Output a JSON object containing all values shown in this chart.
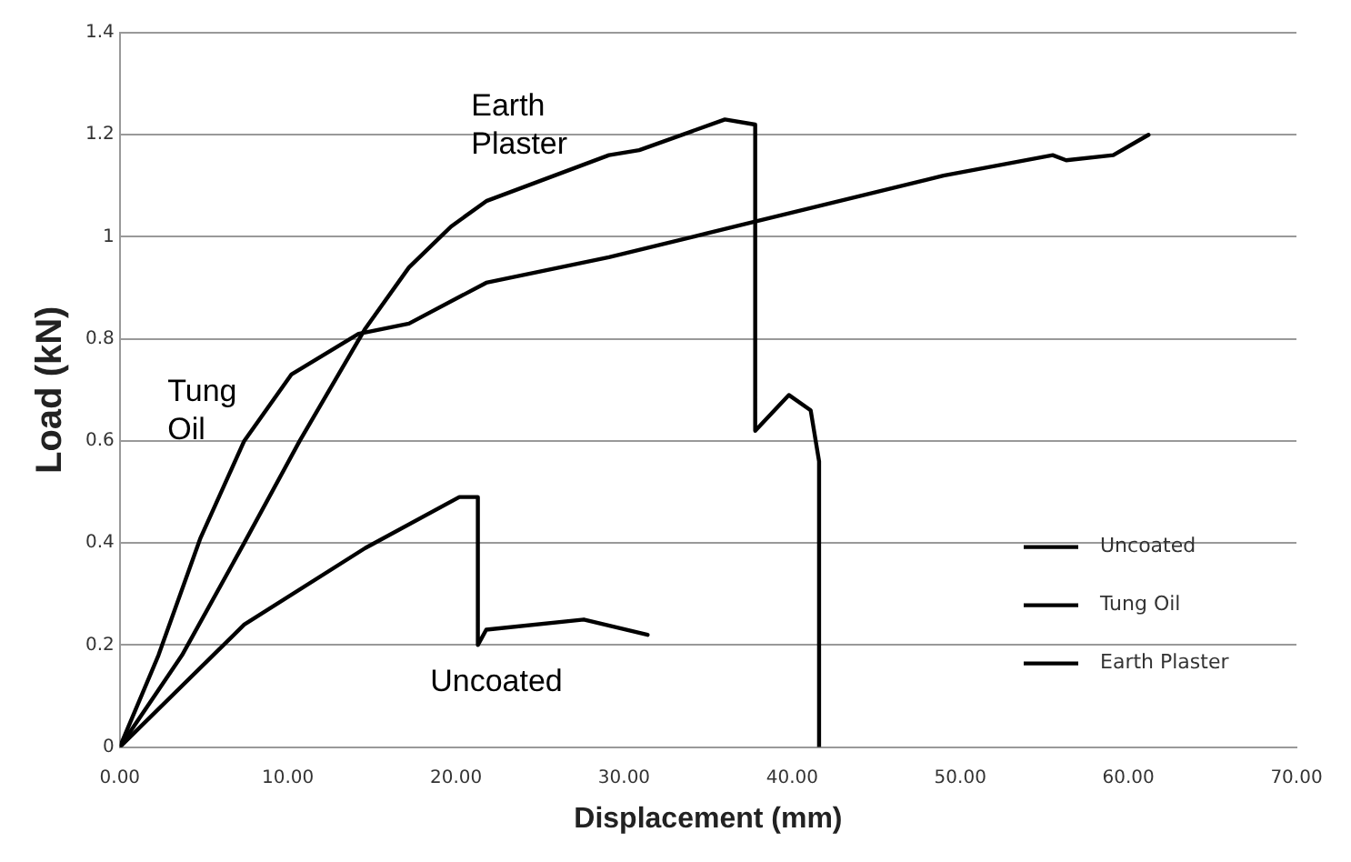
{
  "chart_data": {
    "type": "line",
    "xlabel": "Displacement (mm)",
    "ylabel": "Load (kN)",
    "xlim": [
      0,
      70
    ],
    "xticks": [
      {
        "value": 0,
        "label": "0.00"
      },
      {
        "value": 10,
        "label": "10.00"
      },
      {
        "value": 20,
        "label": "20.00"
      },
      {
        "value": 30,
        "label": "30.00"
      },
      {
        "value": 40,
        "label": "40.00"
      },
      {
        "value": 50,
        "label": "50.00"
      },
      {
        "value": 60,
        "label": "60.00"
      },
      {
        "value": 70,
        "label": "70.00"
      }
    ],
    "ylim": [
      0,
      1.4
    ],
    "yticks": [
      0,
      0.2,
      0.4,
      0.6,
      0.8,
      1,
      1.2,
      1.4
    ],
    "grid": "y",
    "legend": "bottom right",
    "marker": "none",
    "series": [
      {
        "name": "Uncoated",
        "color": "#000000",
        "x": [
          0,
          7.4,
          14.6,
          20.2,
          21.3,
          21.3,
          21.8,
          27.6,
          31.4
        ],
        "values": [
          0,
          0.24,
          0.39,
          0.49,
          0.49,
          0.2,
          0.23,
          0.25,
          0.22
        ]
      },
      {
        "name": "Tung Oil",
        "color": "#000000",
        "x": [
          0,
          2.3,
          4.8,
          7.4,
          10.2,
          14.2,
          17.2,
          21.8,
          29.1,
          37.8,
          49,
          55.5,
          56.3,
          59.1,
          61.2
        ],
        "values": [
          0,
          0.18,
          0.41,
          0.6,
          0.73,
          0.81,
          0.83,
          0.91,
          0.96,
          1.03,
          1.12,
          1.16,
          1.15,
          1.16,
          1.2
        ]
      },
      {
        "name": "Earth Plaster",
        "color": "#000000",
        "x": [
          0,
          3.7,
          7.4,
          10.7,
          14.6,
          17.2,
          19.7,
          21.8,
          29.1,
          30.9,
          36,
          37.8,
          37.8,
          39.8,
          41.1,
          41.6,
          41.6
        ],
        "values": [
          0,
          0.18,
          0.4,
          0.6,
          0.82,
          0.94,
          1.02,
          1.07,
          1.16,
          1.17,
          1.23,
          1.22,
          0.62,
          0.69,
          0.66,
          0.56,
          0
        ]
      }
    ],
    "annotations": [
      "Earth Plaster",
      "Tung Oil",
      "Uncoated"
    ]
  }
}
